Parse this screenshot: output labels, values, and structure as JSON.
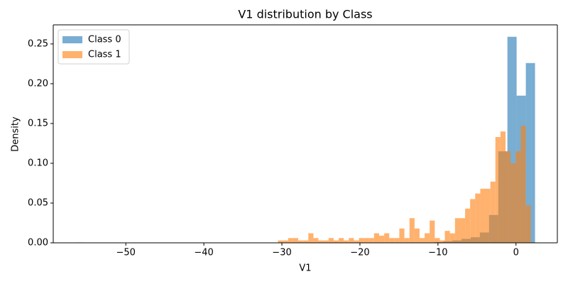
{
  "chart_data": {
    "type": "histogram",
    "title": "V1 distribution by Class",
    "xlabel": "V1",
    "ylabel": "Density",
    "xlim": [
      -59.3,
      5.3
    ],
    "ylim": [
      0,
      0.274
    ],
    "xticks": [
      {
        "value": -50,
        "label": "−50"
      },
      {
        "value": -40,
        "label": "−40"
      },
      {
        "value": -30,
        "label": "−30"
      },
      {
        "value": -20,
        "label": "−20"
      },
      {
        "value": -10,
        "label": "−10"
      },
      0
    ],
    "yticks": [
      {
        "value": 0,
        "label": "0.00"
      },
      {
        "value": 0.05,
        "label": "0.05"
      },
      {
        "value": 0.1,
        "label": "0.10"
      },
      {
        "value": 0.15,
        "label": "0.15"
      },
      {
        "value": 0.2,
        "label": "0.20"
      },
      {
        "value": 0.25,
        "label": "0.25"
      }
    ],
    "legend": "upper left",
    "series": [
      {
        "name": "Class 0",
        "color": "#1f77b4",
        "bins": [
          -56.41,
          -55.23,
          -54.06,
          -52.88,
          -51.7,
          -50.52,
          -49.35,
          -48.17,
          -46.99,
          -45.82,
          -44.64,
          -43.46,
          -42.29,
          -41.11,
          -39.93,
          -38.76,
          -37.58,
          -36.4,
          -35.22,
          -34.05,
          -32.87,
          -31.69,
          -30.52,
          -29.34,
          -28.16,
          -26.99,
          -25.81,
          -24.63,
          -23.46,
          -22.28,
          -21.1,
          -19.93,
          -18.75,
          -17.57,
          -16.39,
          -15.22,
          -14.04,
          -12.86,
          -11.69,
          -10.51,
          -9.33,
          -8.16,
          -6.98,
          -5.8,
          -4.63,
          -3.45,
          -2.27,
          -1.1,
          0.08,
          1.26,
          2.44
        ],
        "values": [
          0.0005,
          0,
          0,
          0,
          0,
          0,
          0,
          0,
          0,
          0,
          0,
          0,
          0,
          0,
          0,
          0,
          0,
          0,
          0,
          0,
          0,
          0,
          0,
          0,
          0,
          0,
          0,
          0,
          0,
          0,
          0,
          0,
          0,
          0,
          0.0005,
          0,
          0.0005,
          0.0005,
          0.0005,
          0.001,
          0.002,
          0.003,
          0.005,
          0.007,
          0.013,
          0.035,
          0.115,
          0.259,
          0.185,
          0.226
        ]
      },
      {
        "name": "Class 1",
        "color": "#ff7f0e",
        "bins": [
          -30.5,
          -29.85,
          -29.2,
          -28.56,
          -27.91,
          -27.26,
          -26.61,
          -25.96,
          -25.32,
          -24.67,
          -24.02,
          -23.37,
          -22.72,
          -22.08,
          -21.43,
          -20.78,
          -20.13,
          -19.48,
          -18.84,
          -18.19,
          -17.54,
          -16.89,
          -16.24,
          -15.6,
          -14.95,
          -14.3,
          -13.65,
          -13.0,
          -12.36,
          -11.71,
          -11.06,
          -10.41,
          -9.76,
          -9.12,
          -8.47,
          -7.82,
          -7.17,
          -6.52,
          -5.88,
          -5.23,
          -4.58,
          -3.93,
          -3.28,
          -2.64,
          -1.99,
          -1.34,
          -0.69,
          -0.04,
          0.61,
          1.26,
          1.9
        ],
        "values": [
          0.003,
          0.003,
          0.006,
          0.006,
          0.003,
          0.003,
          0.012,
          0.006,
          0.003,
          0.003,
          0.006,
          0.003,
          0.006,
          0.003,
          0.006,
          0.003,
          0.006,
          0.006,
          0.006,
          0.012,
          0.009,
          0.012,
          0.006,
          0.006,
          0.018,
          0.006,
          0.031,
          0.018,
          0.006,
          0.012,
          0.028,
          0.006,
          0.003,
          0.015,
          0.012,
          0.031,
          0.031,
          0.043,
          0.055,
          0.062,
          0.068,
          0.068,
          0.077,
          0.133,
          0.14,
          0.115,
          0.1,
          0.115,
          0.147,
          0.047
        ]
      }
    ]
  }
}
